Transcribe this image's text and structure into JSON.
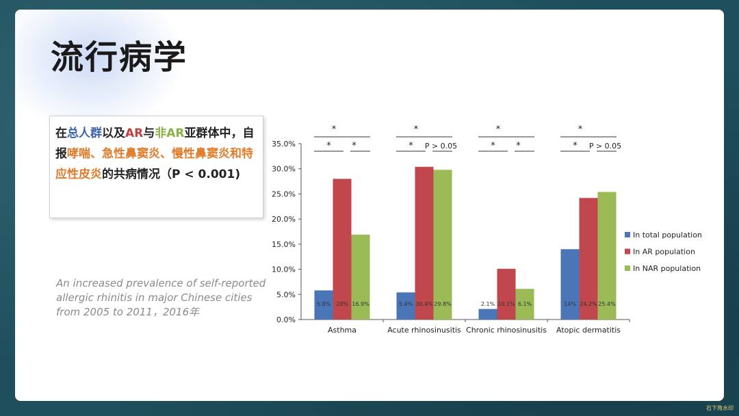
{
  "title": "流行病学",
  "callout": {
    "seg1": "在",
    "seg2": "总人群",
    "seg3": "以及",
    "seg4": "AR",
    "seg5": "与",
    "seg6": "非AR",
    "seg7": "亚群体中，自报",
    "seg8": "哮喘、急性鼻窦炎、慢性鼻窦炎和特应性皮炎",
    "seg9": "的共病情况（P < 0.001)"
  },
  "caption": "An increased prevalence of self-reported allergic rhinitis in major Chinese cities from 2005 to 2011，2016年",
  "watermark": "石下角水印",
  "colors": {
    "total": "#4a76b8",
    "ar": "#c0474b",
    "nar": "#9abb55"
  },
  "chart_data": {
    "type": "bar",
    "categories": [
      "Asthma",
      "Acute rhinosinusitis",
      "Chronic rhinosinusitis",
      "Atopic dermatitis"
    ],
    "series": [
      {
        "name": "In total population",
        "values": [
          5.8,
          5.4,
          2.1,
          14
        ],
        "labels": [
          "5.8%",
          "5.4%",
          "2.1%",
          "14%"
        ]
      },
      {
        "name": "In AR population",
        "values": [
          28,
          30.4,
          10.1,
          24.2
        ],
        "labels": [
          "28%",
          "30.4%",
          "10.1%",
          "24.2%"
        ]
      },
      {
        "name": "In NAR population",
        "values": [
          16.9,
          29.8,
          6.1,
          25.4
        ],
        "labels": [
          "16.9%",
          "29.8%",
          "6.1%",
          "25.4%"
        ]
      }
    ],
    "ylim": [
      0,
      35
    ],
    "yticks": [
      0,
      5,
      10,
      15,
      20,
      25,
      30,
      35
    ],
    "ytick_labels": [
      "0.0%",
      "5.0%",
      "10.0%",
      "15.0%",
      "20.0%",
      "25.0%",
      "30.0%",
      "35.0%"
    ],
    "significance": [
      {
        "top": "*",
        "left": "*",
        "right": "*"
      },
      {
        "top": "*",
        "left": "*",
        "right": "P > 0.05"
      },
      {
        "top": "*",
        "left": "*",
        "right": "*"
      },
      {
        "top": "*",
        "left": "*",
        "right": "P > 0.05"
      }
    ],
    "legend_position": "right",
    "grid": false
  }
}
